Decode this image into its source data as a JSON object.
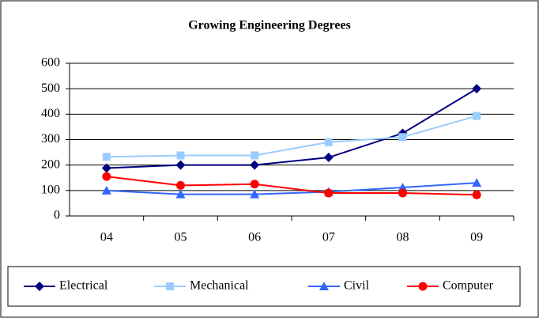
{
  "chart_data": {
    "type": "line",
    "title": "Growing Engineering Degrees",
    "categories": [
      "04",
      "05",
      "06",
      "07",
      "08",
      "09"
    ],
    "series": [
      {
        "name": "Electrical",
        "color": "#000080",
        "marker": "diamond",
        "values": [
          188,
          200,
          200,
          230,
          325,
          500
        ]
      },
      {
        "name": "Mechanical",
        "color": "#99ccff",
        "marker": "square",
        "values": [
          232,
          238,
          238,
          290,
          310,
          393
        ]
      },
      {
        "name": "Civil",
        "color": "#3366ff",
        "marker": "triangle",
        "values": [
          100,
          85,
          85,
          95,
          112,
          130
        ]
      },
      {
        "name": "Computer",
        "color": "#ff0000",
        "marker": "circle",
        "values": [
          155,
          120,
          125,
          90,
          90,
          83
        ]
      }
    ],
    "ylim": [
      0,
      600
    ],
    "yticks": [
      0,
      100,
      200,
      300,
      400,
      500,
      600
    ],
    "grid": true,
    "legend": "bottom"
  }
}
